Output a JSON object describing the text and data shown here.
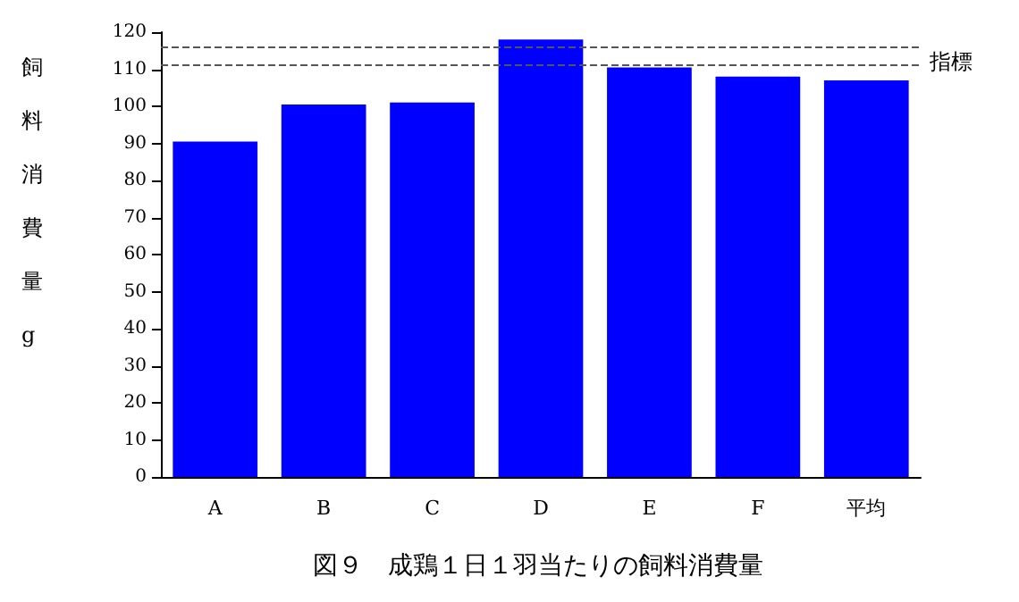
{
  "chart_data": {
    "type": "bar",
    "title": "図９　成鶏１日１羽当たりの飼料消費量",
    "ylabel": "飼料消費量 g",
    "categories": [
      "A",
      "B",
      "C",
      "D",
      "E",
      "F",
      "平均"
    ],
    "values": [
      90.5,
      100.5,
      101,
      118,
      110.5,
      108,
      107
    ],
    "color": "#0000ff",
    "ylim": [
      0,
      120
    ],
    "yticks": [
      0,
      10,
      20,
      30,
      40,
      50,
      60,
      70,
      80,
      90,
      100,
      110,
      120
    ],
    "grid": false,
    "ref_lines": [
      {
        "axis": "y",
        "value": 116,
        "label": "指標",
        "color": "#555555",
        "line_style": "dashed"
      },
      {
        "axis": "y",
        "value": 111,
        "label": null,
        "color": "#555555",
        "line_style": "dashed"
      }
    ]
  }
}
